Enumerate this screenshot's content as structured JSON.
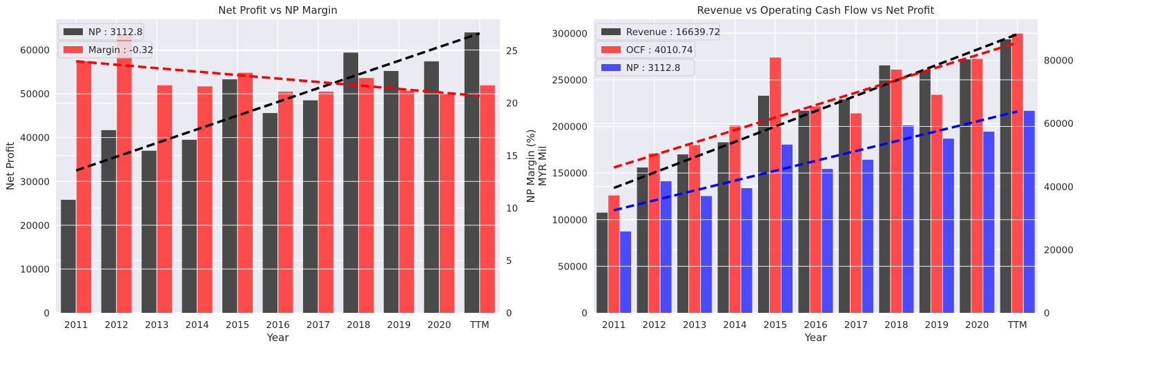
{
  "colors": {
    "panel_bg": "#EAEAF2",
    "grid": "#FFFFFF",
    "np_bar": "#333333",
    "margin_bar": "#FF3333",
    "revenue_bar": "#333333",
    "ocf_bar": "#FF3333",
    "np_bar_right": "#3333FF"
  },
  "chart_data": [
    {
      "type": "bar",
      "title": "Net Profit vs NP Margin",
      "xlabel": "Year",
      "ylabel": "Net Profit",
      "y2label": "NP Margin (%)",
      "categories": [
        "2011",
        "2012",
        "2013",
        "2014",
        "2015",
        "2016",
        "2017",
        "2018",
        "2019",
        "2020",
        "TTM"
      ],
      "ylim": [
        0,
        67000
      ],
      "yticks": [
        0,
        10000,
        20000,
        30000,
        40000,
        50000,
        60000
      ],
      "y2lim": [
        0,
        28
      ],
      "y2ticks": [
        0,
        5,
        10,
        15,
        20,
        25
      ],
      "grid": true,
      "legend_position": "top-left",
      "series": [
        {
          "name": "NP : 3112.8",
          "axis": "left",
          "color": "#333333",
          "values": [
            25800,
            41700,
            37000,
            39500,
            53300,
            45600,
            48500,
            59400,
            55200,
            57400,
            64000
          ]
        },
        {
          "name": "Margin : -0.32",
          "axis": "right",
          "color": "#FF3333",
          "values": [
            24.0,
            26.5,
            21.7,
            21.6,
            22.9,
            21.1,
            21.1,
            22.4,
            21.2,
            20.9,
            21.7
          ]
        }
      ],
      "trendlines": [
        {
          "of": "NP : 3112.8",
          "axis": "left",
          "color": "#000000",
          "start": 32500,
          "end": 63800
        },
        {
          "of": "Margin : -0.32",
          "axis": "right",
          "color": "#FF0000",
          "start": 24.0,
          "end": 20.7
        }
      ]
    },
    {
      "type": "bar",
      "title": "Revenue vs Operating Cash Flow vs Net Profit",
      "xlabel": "Year",
      "ylabel": "MYR Mil",
      "categories": [
        "2011",
        "2012",
        "2013",
        "2014",
        "2015",
        "2016",
        "2017",
        "2018",
        "2019",
        "2020",
        "TTM"
      ],
      "ylim": [
        0,
        315000
      ],
      "yticks": [
        0,
        50000,
        100000,
        150000,
        200000,
        250000,
        300000
      ],
      "y2lim": [
        0,
        93000
      ],
      "y2ticks": [
        0,
        20000,
        40000,
        60000,
        80000
      ],
      "grid": true,
      "legend_position": "top-left",
      "series": [
        {
          "name": "Revenue : 16639.72",
          "axis": "left",
          "color": "#333333",
          "values": [
            107500,
            156000,
            170000,
            183000,
            233000,
            217000,
            229000,
            265500,
            260000,
            272000,
            293500
          ]
        },
        {
          "name": "OCF : 4010.74",
          "axis": "left",
          "color": "#FF3333",
          "values": [
            126000,
            171000,
            180000,
            201000,
            274000,
            221500,
            214000,
            261000,
            234000,
            272500,
            300000
          ]
        },
        {
          "name": "NP : 3112.8",
          "axis": "right",
          "color": "#3333FF",
          "values": [
            25800,
            41700,
            37000,
            39500,
            53300,
            45600,
            48500,
            59400,
            55200,
            57400,
            64000
          ]
        }
      ],
      "trendlines": [
        {
          "of": "Revenue : 16639.72",
          "axis": "left",
          "color": "#000000",
          "start": 134000,
          "end": 299000
        },
        {
          "of": "OCF : 4010.74",
          "axis": "left",
          "color": "#FF0000",
          "start": 156000,
          "end": 290000
        },
        {
          "of": "NP : 3112.8",
          "axis": "right",
          "color": "#0000FF",
          "start": 32500,
          "end": 63800
        }
      ]
    }
  ]
}
